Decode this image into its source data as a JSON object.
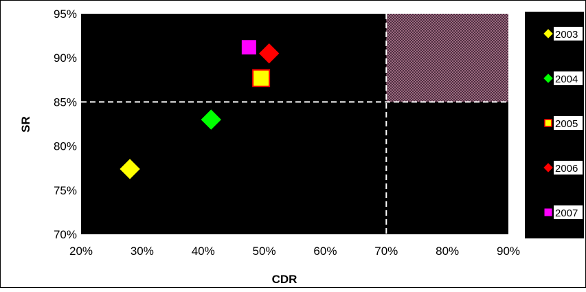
{
  "chart_data": {
    "type": "scatter",
    "xlabel": "CDR",
    "ylabel": "SR",
    "xlim": [
      0.2,
      0.9
    ],
    "ylim": [
      0.7,
      0.95
    ],
    "x_ticks": [
      0.2,
      0.3,
      0.4,
      0.5,
      0.6,
      0.7,
      0.8,
      0.9
    ],
    "y_ticks": [
      0.7,
      0.75,
      0.8,
      0.85,
      0.9,
      0.95
    ],
    "x_tick_labels": [
      "20%",
      "30%",
      "40%",
      "50%",
      "60%",
      "70%",
      "80%",
      "90%"
    ],
    "y_tick_labels": [
      "70%",
      "75%",
      "80%",
      "85%",
      "90%",
      "95%"
    ],
    "plot_background": "#000000",
    "grid": false,
    "legend_position": "right",
    "threshold_lines": {
      "x": 0.7,
      "y": 0.85,
      "color": "#ffffff",
      "style": "dashed"
    },
    "highlight_region": {
      "x": [
        0.7,
        0.9
      ],
      "y": [
        0.85,
        0.95
      ],
      "color": "#d9a0b8",
      "pattern": "crosshatch"
    },
    "series": [
      {
        "name": "2003",
        "marker": "diamond",
        "color": "#ffff00",
        "stroke": "#ffff00",
        "points": [
          {
            "x": 0.28,
            "y": 0.774
          }
        ]
      },
      {
        "name": "2004",
        "marker": "diamond",
        "color": "#00ff00",
        "stroke": "#00ff00",
        "points": [
          {
            "x": 0.413,
            "y": 0.83
          }
        ]
      },
      {
        "name": "2005",
        "marker": "square",
        "color": "#ffff00",
        "stroke": "#ff0000",
        "points": [
          {
            "x": 0.495,
            "y": 0.877
          }
        ]
      },
      {
        "name": "2006",
        "marker": "diamond",
        "color": "#ff0000",
        "stroke": "#ff0000",
        "points": [
          {
            "x": 0.508,
            "y": 0.905
          }
        ]
      },
      {
        "name": "2007",
        "marker": "square",
        "color": "#ff00ff",
        "stroke": "#ff00ff",
        "points": [
          {
            "x": 0.475,
            "y": 0.912
          }
        ]
      }
    ]
  }
}
